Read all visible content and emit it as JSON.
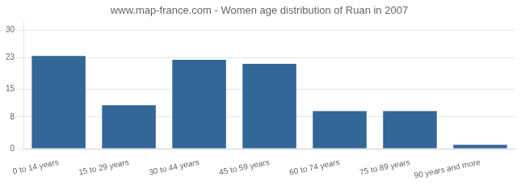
{
  "chart_data": {
    "type": "bar",
    "title": "www.map-france.com - Women age distribution of Ruan in 2007",
    "categories": [
      "0 to 14 years",
      "15 to 29 years",
      "30 to 44 years",
      "45 to 59 years",
      "60 to 74 years",
      "75 to 89 years",
      "90 years and more"
    ],
    "values": [
      23.5,
      11.0,
      22.5,
      21.5,
      9.5,
      9.5,
      1.0
    ],
    "color": "#336699",
    "ylim": [
      0,
      32
    ],
    "yticks": [
      0,
      8,
      15,
      23,
      30
    ],
    "grid": true
  }
}
